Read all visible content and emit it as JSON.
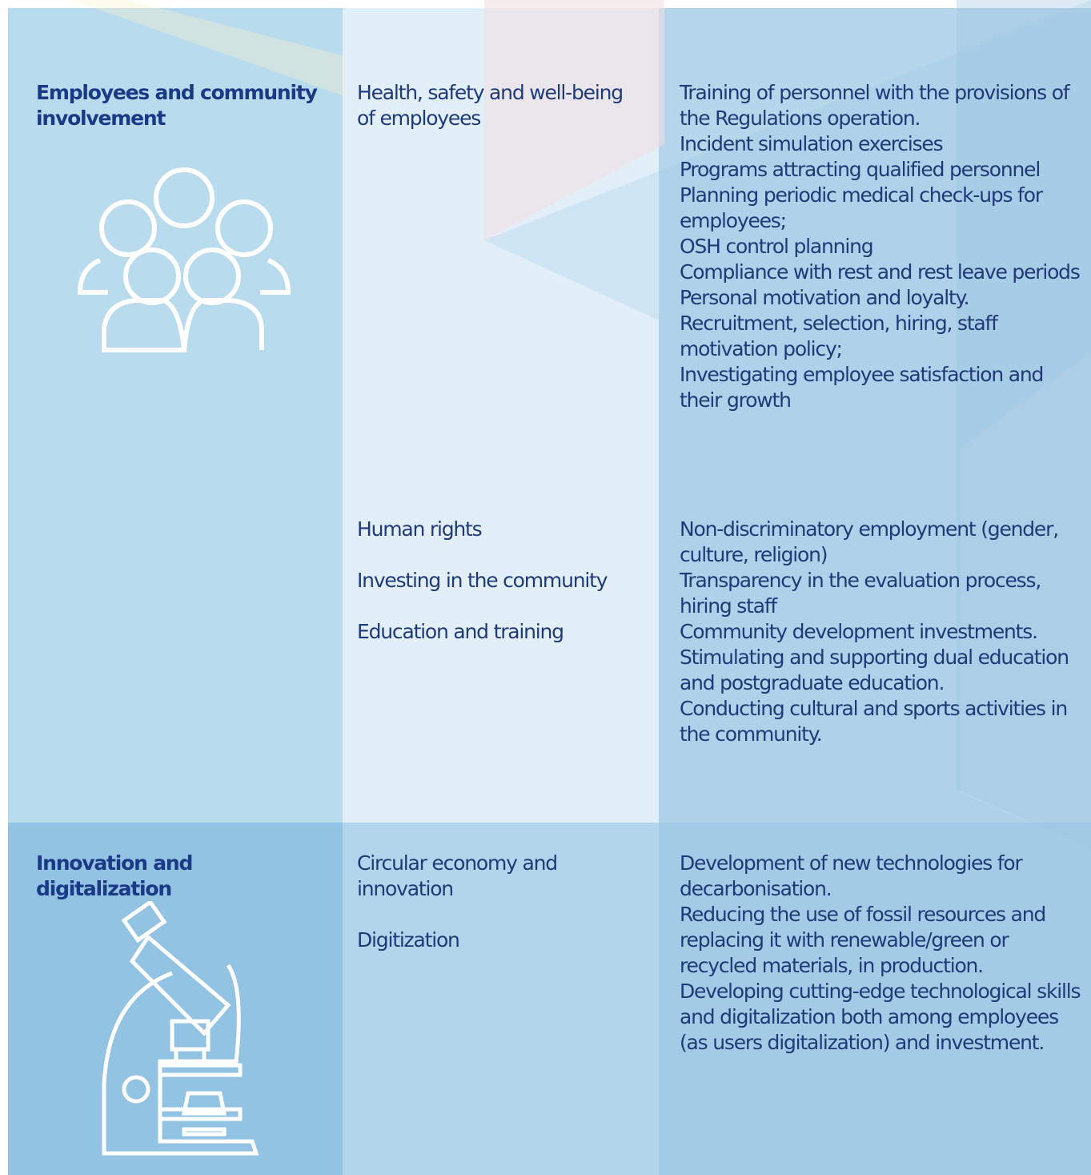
{
  "rows": [
    {
      "category": "Employees and community involvement",
      "groups": [
        {
          "topics": [
            "Health, safety and well-being of employees"
          ],
          "actions": [
            "Training of personnel with the provisions of the Regulations operation.",
            "Incident simulation exercises",
            "Programs attracting qualified personnel",
            "Planning periodic medical check-ups for employees;",
            "OSH control planning",
            "Compliance with rest and rest leave periods",
            "Personal motivation and loyalty.",
            "Recruitment, selection, hiring, staff motivation policy;",
            "Investigating employee satisfaction and their growth"
          ]
        },
        {
          "topics": [
            "Human rights",
            "Investing in the community",
            "Education and training"
          ],
          "actions": [
            "Non-discriminatory employment (gender, culture, religion)",
            "Transparency in the evaluation process, hiring staff",
            "Community development investments.",
            "Stimulating and supporting dual education and postgraduate education.",
            "Conducting cultural and sports activities in the community."
          ]
        }
      ]
    },
    {
      "category": "Innovation and digitalization",
      "groups": [
        {
          "topics": [
            "Circular economy and innovation",
            "Digitization"
          ],
          "actions": [
            "Development of new technologies for decarbonisation.",
            "Reducing the use of fossil resources and replacing it with renewable/green or recycled materials, in production.",
            "Developing cutting-edge technological skills and digitalization both among employees (as users digitalization) and investment."
          ]
        }
      ]
    }
  ]
}
